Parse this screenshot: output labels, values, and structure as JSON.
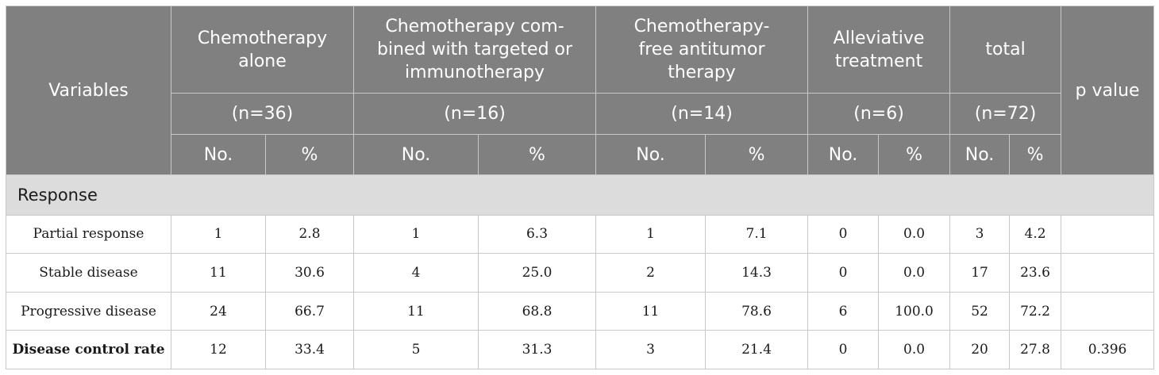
{
  "table": {
    "header": {
      "variables": "Variables",
      "p_value": "p value",
      "groups": [
        {
          "name": "Chemotherapy alone",
          "n": "(n=36)"
        },
        {
          "name": "Chemotherapy com-bined with targeted or immunotherapy",
          "n": "(n=16)"
        },
        {
          "name": "Chemotherapy-free antitumor therapy",
          "n": "(n=14)"
        },
        {
          "name": "Alleviative treatment",
          "n": "(n=6)"
        },
        {
          "name": "total",
          "n": "(n=72)"
        }
      ],
      "no_label": "No.",
      "pct_label": "%"
    },
    "section": "Response",
    "rows": [
      {
        "label": "Partial response",
        "cells": [
          "1",
          "2.8",
          "1",
          "6.3",
          "1",
          "7.1",
          "0",
          "0.0",
          "3",
          "4.2"
        ],
        "p": ""
      },
      {
        "label": "Stable disease",
        "cells": [
          "11",
          "30.6",
          "4",
          "25.0",
          "2",
          "14.3",
          "0",
          "0.0",
          "17",
          "23.6"
        ],
        "p": ""
      },
      {
        "label": "Progressive disease",
        "cells": [
          "24",
          "66.7",
          "11",
          "68.8",
          "11",
          "78.6",
          "6",
          "100.0",
          "52",
          "72.2"
        ],
        "p": ""
      },
      {
        "label": "Disease control rate",
        "cells": [
          "12",
          "33.4",
          "5",
          "31.3",
          "3",
          "21.4",
          "0",
          "0.0",
          "20",
          "27.8"
        ],
        "p": "0.396"
      }
    ]
  }
}
